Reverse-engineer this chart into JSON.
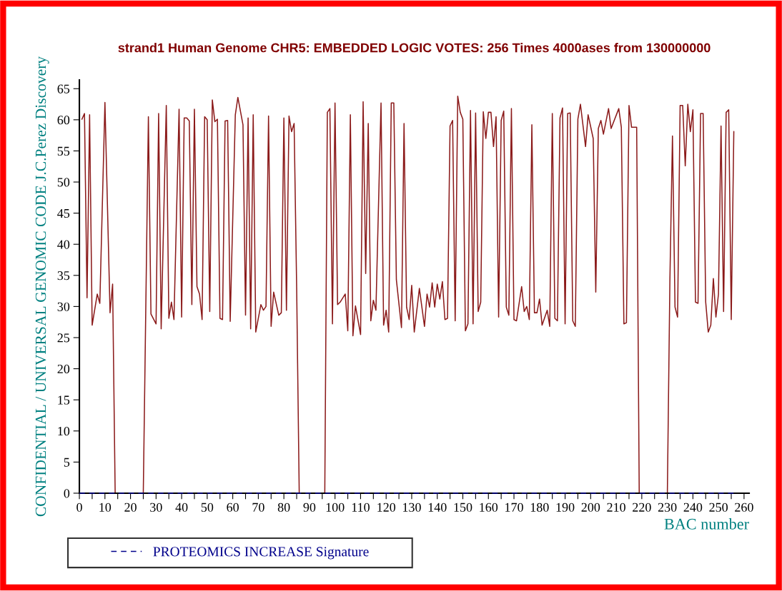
{
  "chart_data": {
    "type": "line",
    "title": "strand1 Human Genome CHR5: EMBEDDED LOGIC VOTES: 256 Times 4000ases from 130000000",
    "xlabel": "BAC number",
    "ylabel": "CONFIDENTIAL / UNIVERSAL GENOMIC CODE J.C.Perez Discovery",
    "xlim": [
      0,
      262
    ],
    "ylim": [
      0,
      66.4
    ],
    "xticks": [
      0,
      {
        "value": 5,
        "label": null
      },
      10,
      {
        "value": 15,
        "label": null
      },
      20,
      {
        "value": 25,
        "label": null
      },
      30,
      {
        "value": 35,
        "label": null
      },
      40,
      {
        "value": 45,
        "label": null
      },
      50,
      {
        "value": 55,
        "label": null
      },
      60,
      {
        "value": 65,
        "label": null
      },
      70,
      {
        "value": 75,
        "label": null
      },
      80,
      {
        "value": 85,
        "label": null
      },
      90,
      {
        "value": 95,
        "label": null
      },
      100,
      {
        "value": 105,
        "label": null
      },
      110,
      {
        "value": 115,
        "label": null
      },
      120,
      {
        "value": 125,
        "label": null
      },
      130,
      {
        "value": 135,
        "label": null
      },
      140,
      {
        "value": 145,
        "label": null
      },
      150,
      {
        "value": 155,
        "label": null
      },
      160,
      {
        "value": 165,
        "label": null
      },
      170,
      {
        "value": 175,
        "label": null
      },
      180,
      {
        "value": 185,
        "label": null
      },
      190,
      {
        "value": 195,
        "label": null
      },
      200,
      {
        "value": 205,
        "label": null
      },
      210,
      {
        "value": 215,
        "label": null
      },
      220,
      {
        "value": 225,
        "label": null
      },
      230,
      {
        "value": 235,
        "label": null
      },
      240,
      {
        "value": 245,
        "label": null
      },
      250,
      {
        "value": 255,
        "label": null
      },
      260
    ],
    "yticks": [
      0,
      5,
      10,
      15,
      20,
      25,
      30,
      35,
      40,
      45,
      50,
      55,
      60,
      65
    ],
    "grid": false,
    "legend": "bottom left",
    "marker": "none",
    "series": [
      {
        "color": "#8b1a1a",
        "line_style": "solid",
        "x": [
          1,
          2,
          3,
          4,
          5,
          7,
          8,
          10,
          12,
          13,
          14,
          25,
          27,
          28,
          30,
          31,
          32,
          34,
          35,
          36,
          37,
          39,
          40,
          41,
          42,
          43,
          44,
          45,
          46,
          47,
          48,
          49,
          50,
          51,
          52,
          53,
          54,
          55,
          56,
          57,
          58,
          59,
          61,
          62,
          64,
          65,
          66,
          67,
          68,
          69,
          71,
          72,
          73,
          74,
          75,
          76,
          78,
          79,
          80,
          81,
          82,
          83,
          84,
          85,
          86,
          96,
          97,
          98,
          99,
          100,
          101,
          102,
          104,
          105,
          106,
          107,
          108,
          110,
          111,
          112,
          113,
          114,
          115,
          116,
          118,
          119,
          120,
          121,
          122,
          123,
          124,
          126,
          127,
          128,
          129,
          130,
          131,
          133,
          135,
          136,
          137,
          138,
          139,
          140,
          141,
          142,
          143,
          144,
          145,
          146,
          147,
          148,
          149,
          150,
          151,
          152,
          153,
          154,
          155,
          156,
          157,
          158,
          159,
          160,
          161,
          162,
          163,
          164,
          165,
          166,
          167,
          168,
          169,
          170,
          171,
          173,
          174,
          175,
          176,
          177,
          178,
          179,
          180,
          181,
          183,
          184,
          185,
          186,
          187,
          188,
          189,
          190,
          191,
          192,
          193,
          194,
          195,
          196,
          198,
          199,
          201,
          202,
          203,
          204,
          205,
          207,
          208,
          211,
          212,
          213,
          214,
          215,
          216,
          218,
          219,
          230,
          231,
          232,
          233,
          234,
          235,
          236,
          237,
          238,
          239,
          240,
          241,
          242,
          243,
          244,
          245,
          246,
          247,
          248,
          249,
          250,
          251,
          252,
          253,
          254,
          255,
          256
        ],
        "values": [
          60.1,
          61,
          31.4,
          60.8,
          27,
          32,
          30.5,
          62.8,
          29,
          33.6,
          0,
          0,
          60.5,
          28.8,
          27.2,
          61,
          26.4,
          62.3,
          28.1,
          30.7,
          27.9,
          61.7,
          28.3,
          60.3,
          60.3,
          59.8,
          30.3,
          61.7,
          33.2,
          32,
          27.9,
          60.5,
          60,
          29.2,
          63.2,
          59.7,
          60.1,
          28.1,
          27.9,
          59.8,
          59.9,
          27.6,
          60.8,
          63.6,
          59.2,
          28.6,
          60.3,
          26.4,
          60.8,
          25.9,
          30.3,
          29.4,
          30,
          60.6,
          26.8,
          32.3,
          28.6,
          29,
          60.3,
          29.4,
          60.6,
          58.1,
          59.4,
          32.9,
          0,
          0,
          61.2,
          61.8,
          27.2,
          62.7,
          30.3,
          30.7,
          32,
          26.1,
          60.8,
          25.3,
          30.1,
          25.5,
          62.9,
          35.3,
          59.4,
          27.7,
          31,
          29.4,
          62.7,
          27,
          29.4,
          25.9,
          62.7,
          62.7,
          34.3,
          26.6,
          59.4,
          29.9,
          27.9,
          33.4,
          25.9,
          32.9,
          26.8,
          32,
          29.9,
          33.8,
          29.9,
          33.6,
          31.2,
          34,
          27.9,
          28.1,
          59,
          59.9,
          27.7,
          63.8,
          61.2,
          60.1,
          26.1,
          27.2,
          61.5,
          27.2,
          61.1,
          29.2,
          30.7,
          61.3,
          57,
          61.2,
          61.2,
          55.7,
          60.5,
          28.3,
          59.9,
          61.4,
          29.9,
          28.6,
          61.8,
          27.9,
          27.7,
          33.2,
          29.2,
          30,
          27.9,
          59.2,
          29,
          29,
          31.2,
          27,
          29.4,
          26.8,
          61,
          28.1,
          27.7,
          60.3,
          61.9,
          27.2,
          61,
          61.1,
          27.7,
          26.8,
          60.1,
          62.5,
          55.7,
          60.8,
          57,
          32.3,
          58.6,
          59.9,
          57.7,
          61.8,
          58.6,
          61.8,
          58.8,
          27.2,
          27.4,
          62.3,
          58.8,
          58.8,
          0,
          0,
          34.3,
          57.4,
          29.9,
          28.3,
          62.3,
          62.3,
          52.6,
          62.5,
          58.1,
          61.6,
          30.7,
          30.5,
          61,
          61,
          30.7,
          25.9,
          27,
          34.5,
          28.3,
          32,
          59,
          29.2,
          61.2,
          61.6,
          27.9,
          58.1
        ]
      },
      {
        "name": "PROTEOMICS INCREASE Signature",
        "color": "#00008b",
        "line_style": "dashed",
        "x": [
          0,
          256
        ],
        "values": [
          0,
          0
        ]
      }
    ]
  }
}
